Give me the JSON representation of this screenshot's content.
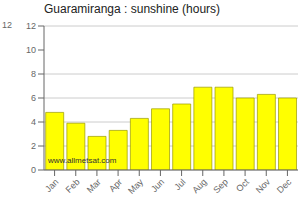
{
  "chart_data": {
    "type": "bar",
    "title": "Guaramiranga : sunshine (hours)",
    "categories": [
      "Jan",
      "Feb",
      "Mar",
      "Apr",
      "May",
      "Jun",
      "Jul",
      "Aug",
      "Sep",
      "Oct",
      "Nov",
      "Dec"
    ],
    "values": [
      4.8,
      3.9,
      2.8,
      3.3,
      4.3,
      5.1,
      5.5,
      6.9,
      6.9,
      6.0,
      6.3,
      6.0
    ],
    "color": "#FFFF00",
    "ylim": [
      0,
      12
    ],
    "yticks": [
      0,
      2,
      4,
      6,
      8,
      10,
      12
    ],
    "grid": true,
    "annotations": [
      "www.allmetsat.com",
      "12"
    ]
  }
}
